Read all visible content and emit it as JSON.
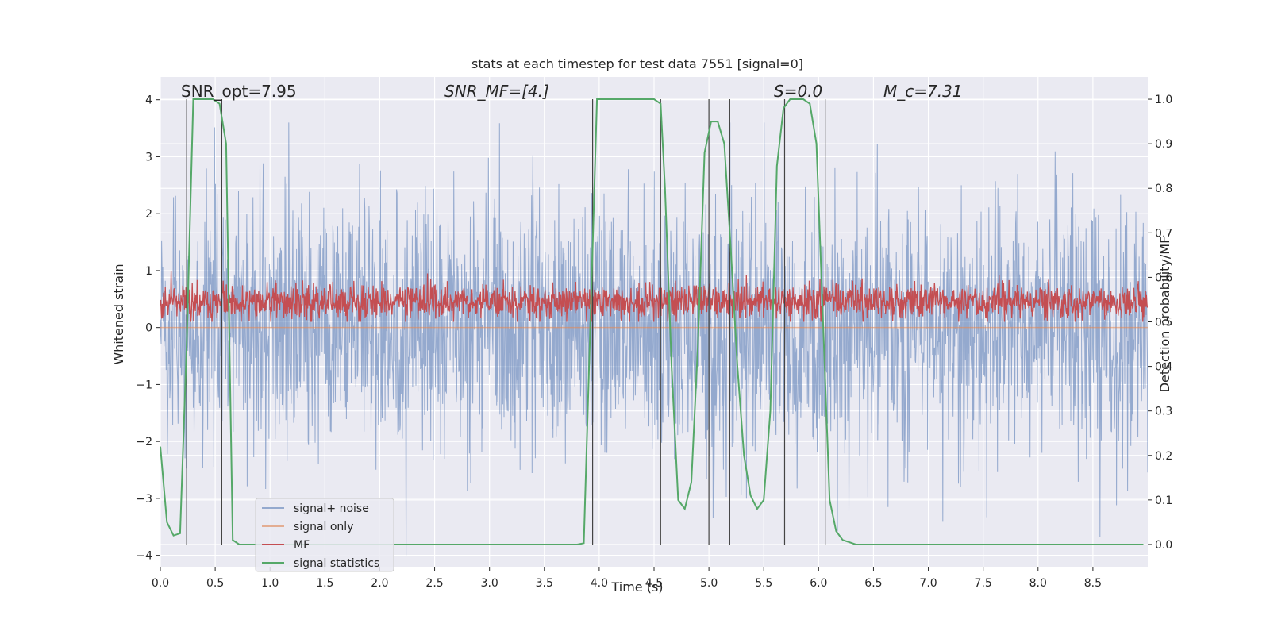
{
  "chart_data": {
    "type": "line",
    "title": "stats at each timestep for test data 7551 [signal=0]",
    "xlabel": "Time (s)",
    "ylabel": "Whitened strain",
    "y2label": "Detection probability/MF",
    "xlim": [
      0,
      9
    ],
    "ylim": [
      -4.2,
      4.4
    ],
    "y2lim": [
      -0.05,
      1.05
    ],
    "xticks": [
      0.0,
      0.5,
      1.0,
      1.5,
      2.0,
      2.5,
      3.0,
      3.5,
      4.0,
      4.5,
      5.0,
      5.5,
      6.0,
      6.5,
      7.0,
      7.5,
      8.0,
      8.5
    ],
    "xtick_labels": [
      "0.0",
      "0.5",
      "1.0",
      "1.5",
      "2.0",
      "2.5",
      "3.0",
      "3.5",
      "4.0",
      "4.5",
      "5.0",
      "5.5",
      "6.0",
      "6.5",
      "7.0",
      "7.5",
      "8.0",
      "8.5"
    ],
    "yticks": [
      -4,
      -3,
      -2,
      -1,
      0,
      1,
      2,
      3,
      4
    ],
    "ytick_labels": [
      "−4",
      "−3",
      "−2",
      "−1",
      "0",
      "1",
      "2",
      "3",
      "4"
    ],
    "y2ticks": [
      0.0,
      0.1,
      0.2,
      0.3,
      0.4,
      0.5,
      0.6,
      0.7,
      0.8,
      0.9,
      1.0
    ],
    "y2tick_labels": [
      "0.0",
      "0.1",
      "0.2",
      "0.3",
      "0.4",
      "0.5",
      "0.6",
      "0.7",
      "0.8",
      "0.9",
      "1.0"
    ],
    "grid": true,
    "legend_position": "bottom-left",
    "annotations": [
      {
        "text": "SNR_opt=7.95",
        "x": 0.2,
        "y": 4.1
      },
      {
        "text": "SNR_MF=[4.]",
        "x": 2.6,
        "y": 4.1
      },
      {
        "text": "S=0.0",
        "x": 5.6,
        "y": 4.1
      },
      {
        "text": "M_c=7.31",
        "x": 6.6,
        "y": 4.1
      }
    ],
    "series": [
      {
        "name": "signal+ noise",
        "color": "#4c72b0",
        "kind": "noise",
        "amplitude_range": [
          -4.0,
          3.6
        ]
      },
      {
        "name": "signal only",
        "color": "#dd8452",
        "kind": "flat",
        "value": 0
      },
      {
        "name": "MF",
        "color": "#c44e52",
        "kind": "mf",
        "range_y2": [
          0.5,
          0.62
        ]
      },
      {
        "name": "signal statistics",
        "color": "#55a868",
        "kind": "line",
        "x": [
          0.0,
          0.06,
          0.12,
          0.18,
          0.24,
          0.3,
          0.36,
          0.42,
          0.48,
          0.54,
          0.6,
          0.66,
          0.72,
          0.78,
          3.8,
          3.86,
          3.92,
          3.98,
          4.04,
          4.5,
          4.56,
          4.6,
          4.66,
          4.72,
          4.78,
          4.84,
          4.9,
          4.96,
          5.02,
          5.08,
          5.14,
          5.2,
          5.26,
          5.32,
          5.38,
          5.44,
          5.5,
          5.56,
          5.62,
          5.68,
          5.74,
          5.8,
          5.86,
          5.92,
          5.98,
          6.04,
          6.1,
          6.16,
          6.22,
          6.28,
          6.34,
          8.96
        ],
        "y": [
          0.22,
          0.05,
          0.02,
          0.025,
          0.45,
          1.0,
          1.0,
          1.0,
          1.0,
          0.99,
          0.9,
          0.01,
          0.0,
          0.0,
          0.0,
          0.003,
          0.5,
          1.0,
          1.0,
          1.0,
          0.99,
          0.8,
          0.4,
          0.1,
          0.08,
          0.14,
          0.45,
          0.88,
          0.95,
          0.95,
          0.9,
          0.66,
          0.4,
          0.2,
          0.11,
          0.08,
          0.1,
          0.3,
          0.85,
          0.98,
          1.0,
          1.0,
          1.0,
          0.99,
          0.9,
          0.5,
          0.1,
          0.03,
          0.01,
          0.005,
          0.0,
          0.0
        ]
      }
    ],
    "vertical_markers": [
      0.24,
      0.56,
      3.94,
      4.56,
      5.0,
      5.19,
      5.69,
      6.06
    ]
  }
}
